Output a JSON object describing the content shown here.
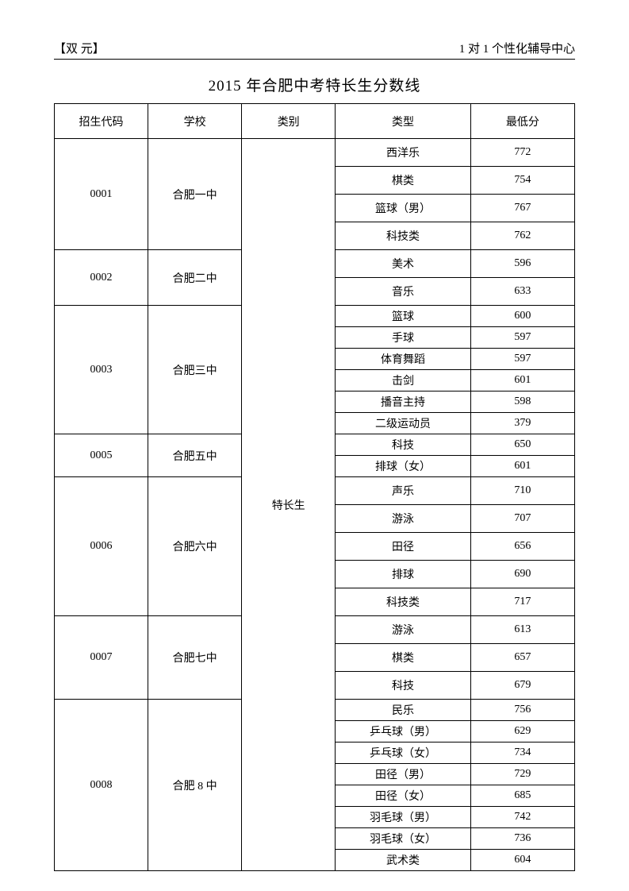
{
  "header": {
    "left": "【双 元】",
    "right": "1 对 1 个性化辅导中心"
  },
  "title": "2015 年合肥中考特长生分数线",
  "columns": {
    "code": "招生代码",
    "school": "学校",
    "category": "类别",
    "type": "类型",
    "score": "最低分"
  },
  "category_label": "特长生",
  "groups": [
    {
      "code": "0001",
      "school": "合肥一中",
      "row_class": "h-tall",
      "rows": [
        {
          "type": "西洋乐",
          "score": "772"
        },
        {
          "type": "棋类",
          "score": "754"
        },
        {
          "type": "篮球（男）",
          "score": "767"
        },
        {
          "type": "科技类",
          "score": "762"
        }
      ]
    },
    {
      "code": "0002",
      "school": "合肥二中",
      "row_class": "h-tall",
      "rows": [
        {
          "type": "美术",
          "score": "596"
        },
        {
          "type": "音乐",
          "score": "633"
        }
      ]
    },
    {
      "code": "0003",
      "school": "合肥三中",
      "row_class": "h-short",
      "rows": [
        {
          "type": "篮球",
          "score": "600"
        },
        {
          "type": "手球",
          "score": "597"
        },
        {
          "type": "体育舞蹈",
          "score": "597"
        },
        {
          "type": "击剑",
          "score": "601"
        },
        {
          "type": "播音主持",
          "score": "598"
        },
        {
          "type": "二级运动员",
          "score": "379"
        }
      ]
    },
    {
      "code": "0005",
      "school": "合肥五中",
      "row_class": "h-short",
      "rows": [
        {
          "type": "科技",
          "score": "650"
        },
        {
          "type": "排球（女）",
          "score": "601"
        }
      ]
    },
    {
      "code": "0006",
      "school": "合肥六中",
      "row_class": "h-tall",
      "rows": [
        {
          "type": "声乐",
          "score": "710"
        },
        {
          "type": "游泳",
          "score": "707"
        },
        {
          "type": "田径",
          "score": "656"
        },
        {
          "type": "排球",
          "score": "690"
        },
        {
          "type": "科技类",
          "score": "717"
        }
      ]
    },
    {
      "code": "0007",
      "school": "合肥七中",
      "row_class": "h-tall",
      "rows": [
        {
          "type": "游泳",
          "score": "613"
        },
        {
          "type": "棋类",
          "score": "657"
        },
        {
          "type": "科技",
          "score": "679"
        }
      ]
    },
    {
      "code": "0008",
      "school": "合肥 8 中",
      "row_class": "h-short",
      "rows": [
        {
          "type": "民乐",
          "score": "756"
        },
        {
          "type": "乒乓球（男）",
          "score": "629"
        },
        {
          "type": "乒乓球（女）",
          "score": "734"
        },
        {
          "type": "田径（男）",
          "score": "729"
        },
        {
          "type": "田径（女）",
          "score": "685"
        },
        {
          "type": "羽毛球（男）",
          "score": "742"
        },
        {
          "type": "羽毛球（女）",
          "score": "736"
        },
        {
          "type": "武术类",
          "score": "604"
        }
      ]
    }
  ]
}
